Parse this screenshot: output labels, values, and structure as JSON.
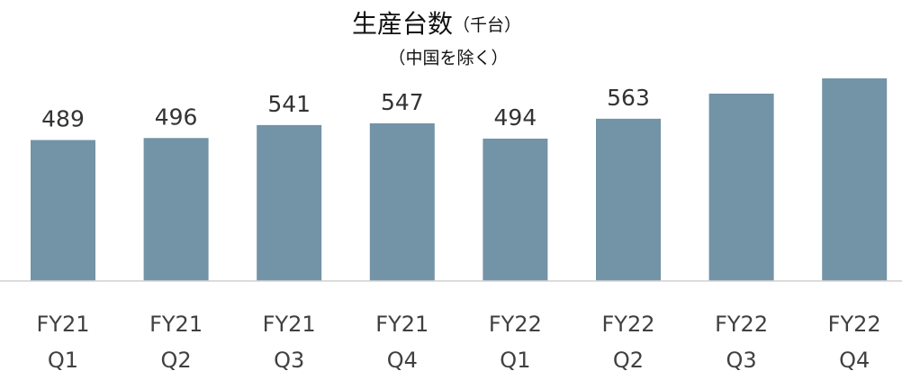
{
  "chart_data": {
    "type": "bar",
    "title": "生産台数",
    "title_unit": "（千台）",
    "subtitle": "（中国を除く）",
    "categories": [
      "FY21 Q1",
      "FY21 Q2",
      "FY21 Q3",
      "FY21 Q4",
      "FY22 Q1",
      "FY22 Q2",
      "FY22 Q3",
      "FY22 Q4"
    ],
    "values": [
      489,
      496,
      541,
      547,
      494,
      563,
      650,
      703
    ],
    "value_labels": [
      "489",
      "496",
      "541",
      "547",
      "494",
      "563",
      null,
      null
    ],
    "color": "#7393a7",
    "ylim": [
      0,
      700
    ]
  }
}
